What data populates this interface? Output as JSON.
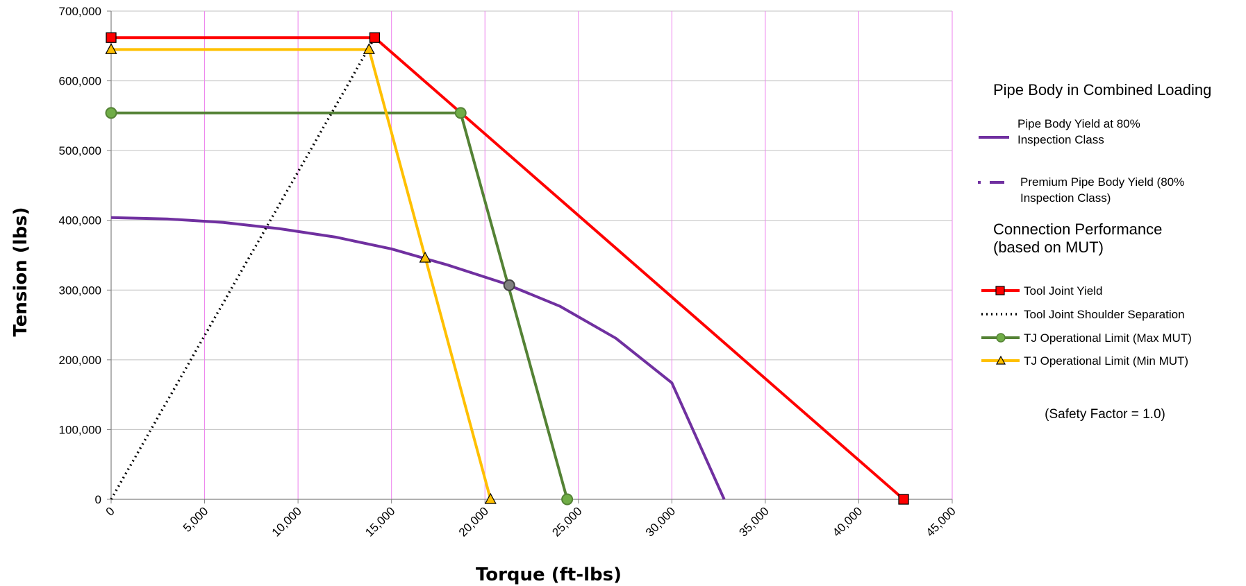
{
  "chart_data": {
    "type": "line",
    "xlabel": "Torque  (ft-lbs)",
    "ylabel": "Tension  (lbs)",
    "xlim": [
      0,
      45000
    ],
    "ylim": [
      0,
      700000
    ],
    "x_tick_labels": [
      "0",
      "5,000",
      "10,000",
      "15,000",
      "20,000",
      "25,000",
      "30,000",
      "35,000",
      "40,000",
      "45,000"
    ],
    "y_tick_labels": [
      "0",
      "100,000",
      "200,000",
      "300,000",
      "400,000",
      "500,000",
      "600,000",
      "700,000"
    ],
    "grid": {
      "vertical": true,
      "horizontal": true,
      "vertical_color": "#ee82ee",
      "horizontal_color": "#c0c0c0"
    },
    "series": [
      {
        "name": "Pipe Body Yield at 80% Inspection Class",
        "color": "#7030a0",
        "style": "solid",
        "marker": "none",
        "x": [
          0,
          3000,
          6000,
          9000,
          12000,
          15000,
          18000,
          21000,
          24000,
          27000,
          30000,
          32800
        ],
        "y": [
          404000,
          402000,
          397000,
          388000,
          376000,
          359000,
          336000,
          310000,
          277000,
          231000,
          167000,
          0
        ]
      },
      {
        "name": "Premium Pipe Body Yield (80% Inspection Class)",
        "color": "#7030a0",
        "style": "dashed",
        "marker": "none",
        "x": [],
        "y": []
      },
      {
        "name": "Tool Joint Yield",
        "color": "#ff0000",
        "style": "solid",
        "marker": "square",
        "x": [
          0,
          14100,
          42400
        ],
        "y": [
          662000,
          662000,
          0
        ]
      },
      {
        "name": "Tool Joint Shoulder Separation",
        "color": "#000000",
        "style": "dotted",
        "marker": "none",
        "x": [
          0,
          14100
        ],
        "y": [
          0,
          662000
        ]
      },
      {
        "name": "TJ Operational Limit (Max MUT)",
        "color": "#548235",
        "style": "solid",
        "marker": "circle",
        "x": [
          0,
          18700,
          24400
        ],
        "y": [
          554000,
          554000,
          0
        ]
      },
      {
        "name": "TJ Operational Limit (Min MUT)",
        "color": "#ffc000",
        "style": "solid",
        "marker": "triangle",
        "x": [
          0,
          13800,
          20300
        ],
        "y": [
          645000,
          645000,
          0
        ]
      }
    ],
    "annotations": [
      {
        "x": 16800,
        "y": 346000,
        "marker": "triangle",
        "color": "#ffc000"
      },
      {
        "x": 21300,
        "y": 307000,
        "marker": "circle",
        "color": "#808080"
      }
    ],
    "legend": {
      "placement": "right",
      "heading_pipe": "Pipe Body in Combined Loading",
      "heading_conn_line1": "Connection Performance",
      "heading_conn_line2": "(based on  MUT)",
      "pipe_yield_line1": "Pipe Body Yield at 80%",
      "pipe_yield_line2": "Inspection Class",
      "premium_line1": "Premium Pipe Body Yield (80%",
      "premium_line2": "Inspection Class)",
      "tj_yield": "Tool Joint Yield",
      "tj_shoulder": "Tool Joint Shoulder Separation",
      "tj_max": "TJ Operational Limit (Max MUT)",
      "tj_min": "TJ Operational Limit (Min MUT)",
      "safety_factor": "(Safety Factor = 1.0)"
    }
  }
}
